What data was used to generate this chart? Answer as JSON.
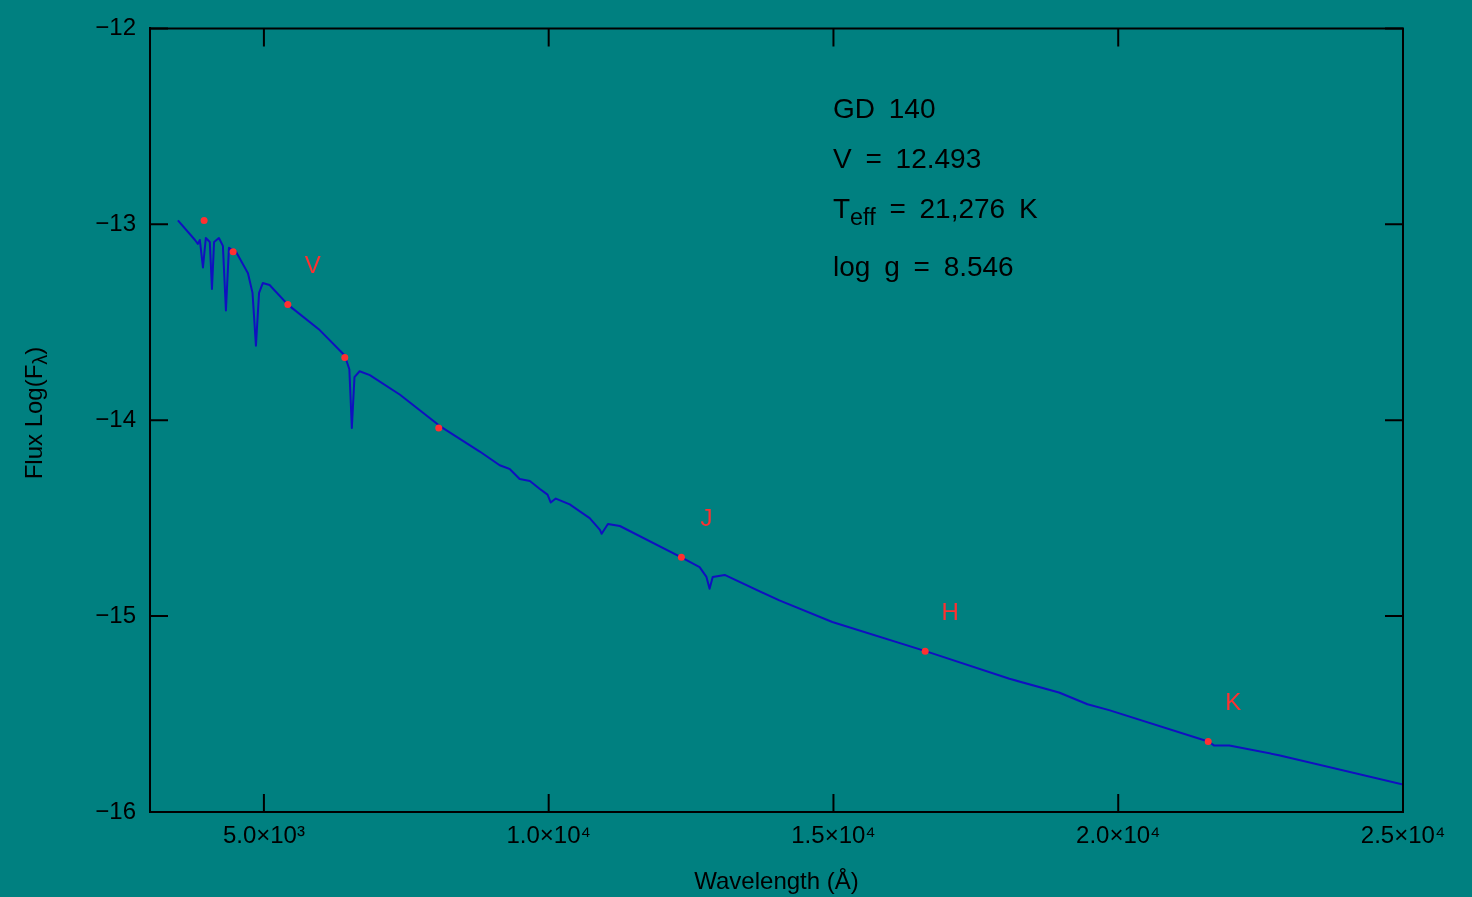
{
  "chart_data": {
    "type": "line",
    "xlabel": "Wavelength (Å)",
    "ylabel": "Flux Log(F$_{λ}$)",
    "xlim": [
      3000,
      25000
    ],
    "xticks": [
      {
        "value": 5000,
        "label": "5.0×10³"
      },
      {
        "value": 10000,
        "label": "1.0×10⁴"
      },
      {
        "value": 15000,
        "label": "1.5×10⁴"
      },
      {
        "value": 20000,
        "label": "2.0×10⁴"
      },
      {
        "value": 25000,
        "label": "2.5×10⁴"
      }
    ],
    "ylim": [
      -16,
      -12
    ],
    "yticks": [
      {
        "value": -16,
        "label": "−16"
      },
      {
        "value": -15,
        "label": "−15"
      },
      {
        "value": -14,
        "label": "−14"
      },
      {
        "value": -13,
        "label": "−13"
      },
      {
        "value": -12,
        "label": "−12"
      }
    ],
    "grid": false,
    "legend": false,
    "series": [
      {
        "color": "#1010c0",
        "line_style": "solid",
        "marker": "none",
        "x": [
          3490,
          3790,
          3840,
          3875,
          3930,
          3980,
          4050,
          4088,
          4125,
          4210,
          4280,
          4333,
          4386,
          4510,
          4720,
          4800,
          4860,
          4915,
          4980,
          5100,
          5420,
          5980,
          6420,
          6500,
          6544,
          6590,
          6680,
          6860,
          7390,
          8090,
          8790,
          9140,
          9320,
          9490,
          9670,
          9840,
          9980,
          10035,
          10125,
          10370,
          10720,
          10900,
          10930,
          11040,
          11250,
          12330,
          12650,
          12770,
          12825,
          12880,
          13090,
          14050,
          14980,
          16630,
          18090,
          18960,
          19460,
          19840,
          21580,
          21680,
          21950,
          22820,
          25000
        ],
        "values": [
          -12.98,
          -13.08,
          -13.1,
          -13.08,
          -13.22,
          -13.07,
          -13.09,
          -13.33,
          -13.09,
          -13.07,
          -13.11,
          -13.44,
          -13.12,
          -13.14,
          -13.25,
          -13.35,
          -13.62,
          -13.35,
          -13.3,
          -13.31,
          -13.41,
          -13.54,
          -13.67,
          -13.74,
          -14.04,
          -13.78,
          -13.75,
          -13.77,
          -13.87,
          -14.03,
          -14.16,
          -14.23,
          -14.25,
          -14.3,
          -14.31,
          -14.35,
          -14.38,
          -14.42,
          -14.4,
          -14.43,
          -14.5,
          -14.56,
          -14.58,
          -14.53,
          -14.54,
          -14.7,
          -14.75,
          -14.8,
          -14.86,
          -14.8,
          -14.79,
          -14.92,
          -15.03,
          -15.18,
          -15.32,
          -15.39,
          -15.45,
          -15.48,
          -15.64,
          -15.66,
          -15.66,
          -15.71,
          -15.86
        ]
      },
      {
        "type": "scatter",
        "color": "#ff3030",
        "marker": "circle",
        "x": [
          3950,
          4460,
          5420,
          6420,
          8070,
          12330,
          16610,
          21580
        ],
        "values": [
          -12.98,
          -13.14,
          -13.41,
          -13.68,
          -14.04,
          -14.7,
          -15.18,
          -15.64
        ]
      }
    ],
    "annotations": [
      "GD 140",
      "V = 12.493",
      "T$_{eff}$ = 21,276 K",
      "log g = 8.546",
      {
        "text": "V",
        "x": 5420,
        "y": -13.41
      },
      {
        "text": "J",
        "x": 12330,
        "y": -14.7
      },
      {
        "text": "H",
        "x": 16610,
        "y": -15.18
      },
      {
        "text": "K",
        "x": 21580,
        "y": -15.64
      }
    ]
  }
}
